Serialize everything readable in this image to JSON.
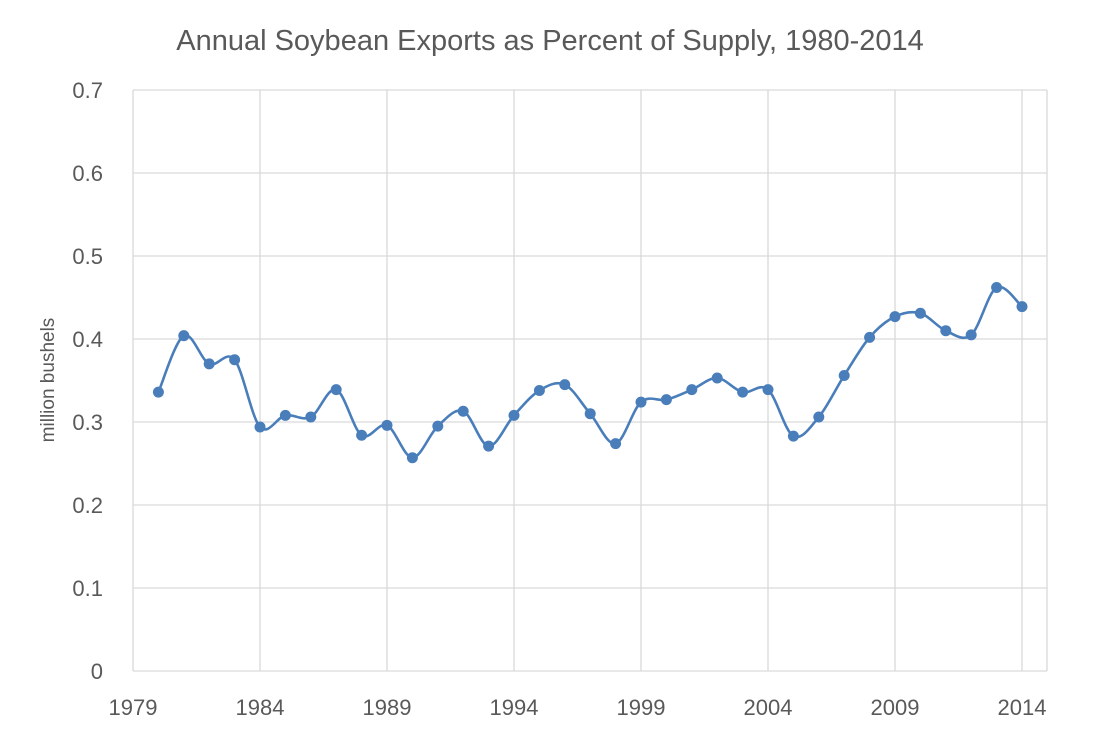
{
  "chart_data": {
    "type": "line",
    "title": "Annual Soybean Exports as Percent of Supply, 1980-2014",
    "xlabel": "",
    "ylabel": "million bushels",
    "xlim": [
      1979,
      2014
    ],
    "ylim": [
      0,
      0.7
    ],
    "x_ticks": [
      1979,
      1984,
      1989,
      1994,
      1999,
      2004,
      2009,
      2014
    ],
    "y_ticks": [
      0,
      0.1,
      0.2,
      0.3,
      0.4,
      0.5,
      0.6,
      0.7
    ],
    "y_tick_labels": [
      "0",
      "0.1",
      "0.2",
      "0.3",
      "0.4",
      "0.5",
      "0.6",
      "0.7"
    ],
    "grid": true,
    "legend": "none",
    "smooth": true,
    "colors": {
      "series": "#4a7ebb",
      "grid": "#d9d9d9",
      "text": "#595959"
    },
    "series": [
      {
        "x": [
          1980,
          1981,
          1982,
          1983,
          1984,
          1985,
          1986,
          1987,
          1988,
          1989,
          1990,
          1991,
          1992,
          1993,
          1994,
          1995,
          1996,
          1997,
          1998,
          1999,
          2000,
          2001,
          2002,
          2003,
          2004,
          2005,
          2006,
          2007,
          2008,
          2009,
          2010,
          2011,
          2012,
          2013,
          2014
        ],
        "values": [
          0.336,
          0.404,
          0.37,
          0.375,
          0.294,
          0.308,
          0.306,
          0.339,
          0.284,
          0.296,
          0.257,
          0.295,
          0.313,
          0.271,
          0.308,
          0.338,
          0.345,
          0.31,
          0.274,
          0.324,
          0.327,
          0.339,
          0.353,
          0.336,
          0.339,
          0.283,
          0.306,
          0.356,
          0.402,
          0.427,
          0.431,
          0.41,
          0.405,
          0.462,
          0.439
        ]
      }
    ]
  }
}
